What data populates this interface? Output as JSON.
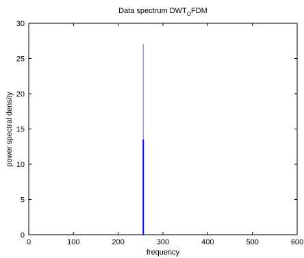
{
  "chart_data": {
    "type": "line",
    "title": "Data spectrum DWT",
    "title_subscript": "O",
    "title_suffix": "FDM",
    "xlabel": "frequency",
    "ylabel": "power spectral density",
    "xlim": [
      0,
      600
    ],
    "ylim": [
      0,
      30
    ],
    "xticks": [
      0,
      100,
      200,
      300,
      400,
      500,
      600
    ],
    "yticks": [
      0,
      5,
      10,
      15,
      20,
      25,
      30
    ],
    "grid": false,
    "series": [
      {
        "x": [
          256,
          256
        ],
        "y": [
          0,
          27.1
        ],
        "color": "#8080c0"
      },
      {
        "x": [
          256,
          256
        ],
        "y": [
          0,
          13.5
        ],
        "color": "#0000ff"
      }
    ]
  }
}
